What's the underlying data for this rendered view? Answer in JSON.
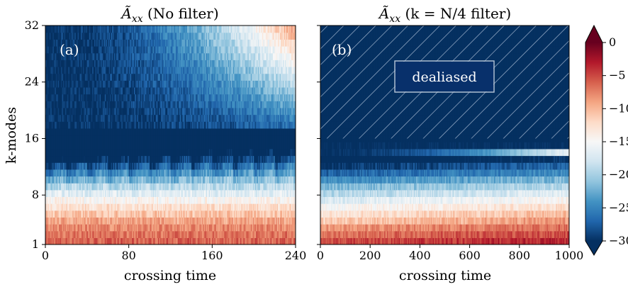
{
  "chart_data": [
    {
      "type": "heatmap",
      "panel_label": "(a)",
      "title_math": "Ã",
      "title_sub": "xx",
      "title_rest": " (No filter)",
      "xlabel": "crossing time",
      "ylabel": "k-modes",
      "xlim": [
        0,
        240
      ],
      "ylim": [
        1,
        32
      ],
      "xticks": [
        0,
        80,
        160,
        240
      ],
      "yticks": [
        1,
        8,
        16,
        24,
        32
      ],
      "ncols": 240,
      "nrows": 32
    },
    {
      "type": "heatmap",
      "panel_label": "(b)",
      "title_math": "Ã",
      "title_sub": "xx",
      "title_rest": " (k = N/4 filter)",
      "xlabel": "crossing time",
      "xlim": [
        0,
        1000
      ],
      "ylim": [
        1,
        32
      ],
      "xticks": [
        0,
        200,
        400,
        600,
        800,
        1000
      ],
      "yticks": [
        1,
        8,
        16,
        24,
        32
      ],
      "ncols": 250,
      "nrows": 32,
      "hatched_region": {
        "k_from": 16,
        "k_to": 32,
        "label": "dealiased"
      }
    }
  ],
  "colorbar": {
    "colormap": "RdBu_r",
    "vmin": -30,
    "vmax": 0,
    "ticks": [
      0,
      -5,
      -10,
      -15,
      -20,
      -25,
      -30
    ],
    "tick_labels": [
      "0",
      "−5",
      "−10",
      "−15",
      "−20",
      "−25",
      "−30"
    ],
    "extend": "both"
  }
}
